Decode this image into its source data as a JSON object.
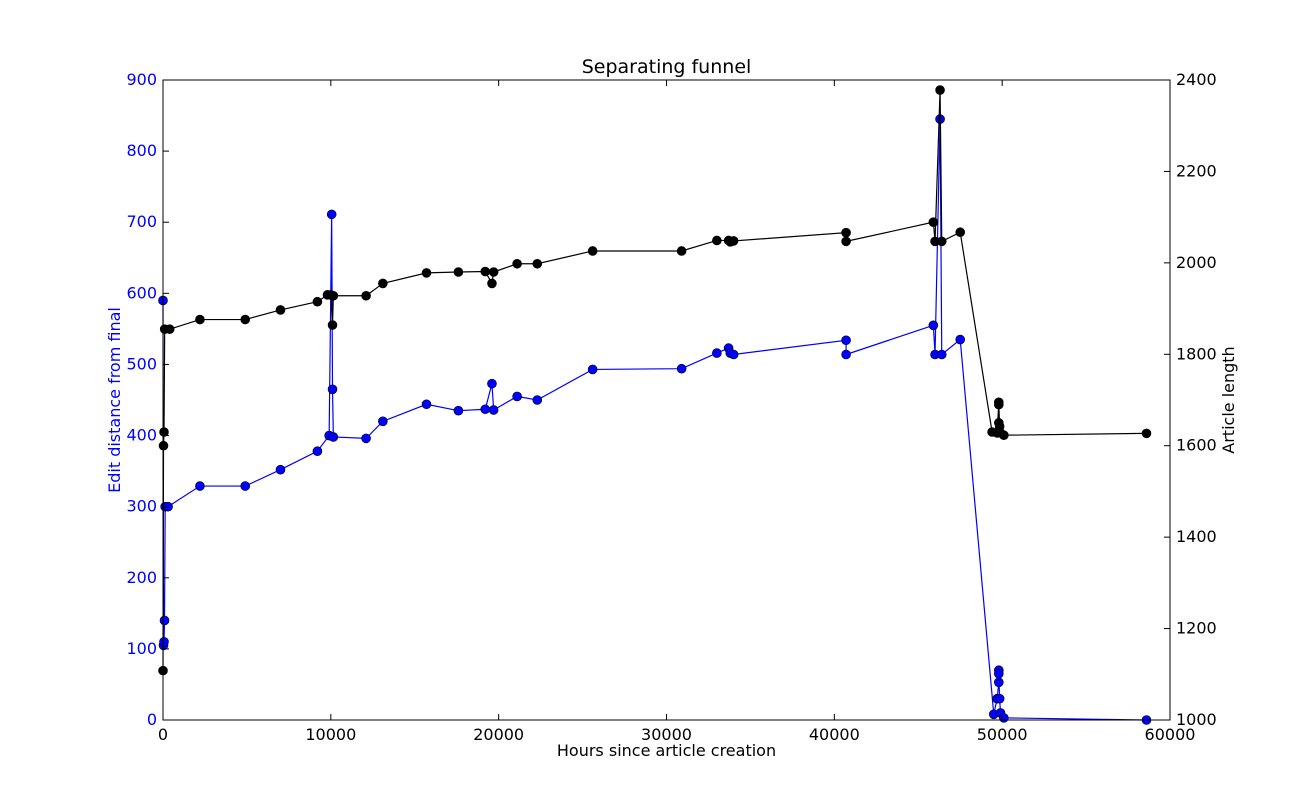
{
  "chart_data": {
    "type": "line",
    "title": "Separating funnel",
    "xlabel": "Hours since article creation",
    "ylabel_left": "Edit distance from final",
    "ylabel_right": "Article length",
    "xlim": [
      0,
      60000
    ],
    "ylim_left": [
      0,
      900
    ],
    "ylim_right": [
      1000,
      2400
    ],
    "x_ticks": [
      "0",
      "10000",
      "20000",
      "30000",
      "40000",
      "50000",
      "60000"
    ],
    "y_left_ticks": [
      "0",
      "100",
      "200",
      "300",
      "400",
      "500",
      "600",
      "700",
      "800",
      "900"
    ],
    "y_right_ticks": [
      "1000",
      "1200",
      "1400",
      "1600",
      "1800",
      "2000",
      "2200",
      "2400"
    ],
    "grid": false,
    "colors": {
      "left_series": "#0000ff",
      "right_series": "#000000",
      "left_axis_text": "#0000ff"
    },
    "series": [
      {
        "axis": "left",
        "values": [
          [
            0,
            590
          ],
          [
            30,
            105
          ],
          [
            60,
            110
          ],
          [
            90,
            140
          ],
          [
            130,
            300
          ],
          [
            300,
            300
          ],
          [
            2200,
            329
          ],
          [
            4900,
            329
          ],
          [
            7000,
            352
          ],
          [
            9200,
            378
          ],
          [
            9900,
            400
          ],
          [
            10050,
            711
          ],
          [
            10100,
            465
          ],
          [
            10150,
            398
          ],
          [
            12100,
            396
          ],
          [
            13100,
            420
          ],
          [
            15700,
            444
          ],
          [
            17600,
            435
          ],
          [
            19200,
            437
          ],
          [
            19600,
            473
          ],
          [
            19700,
            436
          ],
          [
            21100,
            455
          ],
          [
            22300,
            450
          ],
          [
            25600,
            493
          ],
          [
            30900,
            494
          ],
          [
            33000,
            516
          ],
          [
            33700,
            523
          ],
          [
            33800,
            516
          ],
          [
            34000,
            514
          ],
          [
            40700,
            534
          ],
          [
            40700,
            514
          ],
          [
            45900,
            555
          ],
          [
            46000,
            514
          ],
          [
            46300,
            845
          ],
          [
            46400,
            514
          ],
          [
            47500,
            535
          ],
          [
            49500,
            8
          ],
          [
            49700,
            30
          ],
          [
            49800,
            53
          ],
          [
            49800,
            70
          ],
          [
            49800,
            65
          ],
          [
            49850,
            30
          ],
          [
            49900,
            10
          ],
          [
            50100,
            3
          ],
          [
            58600,
            0
          ]
        ]
      },
      {
        "axis": "right",
        "values": [
          [
            0,
            1108
          ],
          [
            30,
            1600
          ],
          [
            60,
            1630
          ],
          [
            100,
            1855
          ],
          [
            400,
            1855
          ],
          [
            2200,
            1876
          ],
          [
            4900,
            1876
          ],
          [
            7000,
            1897
          ],
          [
            9200,
            1915
          ],
          [
            9800,
            1930
          ],
          [
            10000,
            1930
          ],
          [
            10100,
            1864
          ],
          [
            10150,
            1928
          ],
          [
            12100,
            1928
          ],
          [
            13100,
            1955
          ],
          [
            15700,
            1978
          ],
          [
            17600,
            1980
          ],
          [
            19200,
            1981
          ],
          [
            19600,
            1955
          ],
          [
            19700,
            1980
          ],
          [
            21100,
            1998
          ],
          [
            22300,
            1998
          ],
          [
            25600,
            2026
          ],
          [
            30900,
            2026
          ],
          [
            33000,
            2049
          ],
          [
            33700,
            2049
          ],
          [
            33800,
            2046
          ],
          [
            34000,
            2048
          ],
          [
            40700,
            2066
          ],
          [
            40700,
            2047
          ],
          [
            45900,
            2089
          ],
          [
            46000,
            2047
          ],
          [
            46300,
            2378
          ],
          [
            46400,
            2047
          ],
          [
            47500,
            2067
          ],
          [
            49400,
            1630
          ],
          [
            49700,
            1628
          ],
          [
            49800,
            1695
          ],
          [
            49800,
            1650
          ],
          [
            49800,
            1690
          ],
          [
            49850,
            1642
          ],
          [
            49900,
            1628
          ],
          [
            50100,
            1623
          ],
          [
            58600,
            1627
          ]
        ]
      }
    ]
  }
}
